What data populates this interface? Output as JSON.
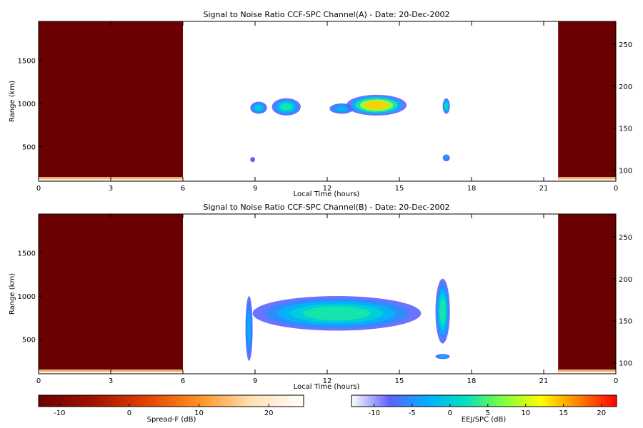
{
  "chart_data": [
    {
      "type": "heatmap",
      "title": "Signal to Noise Ratio CCF-SPC Channel(A) - Date: 20-Dec-2002",
      "xlabel": "Local Time (hours)",
      "ylabel": "Range (km)",
      "xlim": [
        0,
        24
      ],
      "ylim": [
        100,
        1950
      ],
      "x_ticks": [
        "0",
        "3",
        "6",
        "9",
        "12",
        "15",
        "18",
        "21",
        "0"
      ],
      "y_ticks": [
        "500",
        "1000",
        "1500"
      ],
      "y2_ticks": [
        "100",
        "150",
        "200",
        "250"
      ],
      "nighttime_spread_f_regions": [
        [
          0,
          6
        ],
        [
          21.6,
          24
        ]
      ],
      "echo_features": [
        {
          "x0": 8.8,
          "x1": 9.5,
          "range": [
            880,
            1020
          ],
          "peak_db": 0
        },
        {
          "x0": 9.7,
          "x1": 10.9,
          "range": [
            860,
            1060
          ],
          "peak_db": 3
        },
        {
          "x0": 12.1,
          "x1": 13.1,
          "range": [
            880,
            1000
          ],
          "peak_db": -2
        },
        {
          "x0": 12.8,
          "x1": 15.3,
          "range": [
            860,
            1100
          ],
          "peak_db": 14
        },
        {
          "x0": 8.8,
          "x1": 9.0,
          "range": [
            320,
            380
          ],
          "peak_db": -8
        },
        {
          "x0": 16.8,
          "x1": 17.1,
          "range": [
            880,
            1060
          ],
          "peak_db": 2
        },
        {
          "x0": 16.8,
          "x1": 17.1,
          "range": [
            330,
            410
          ],
          "peak_db": -4
        }
      ]
    },
    {
      "type": "heatmap",
      "title": "Signal to Noise Ratio CCF-SPC Channel(B) - Date: 20-Dec-2002",
      "xlabel": "Local Time (hours)",
      "ylabel": "Range (km)",
      "xlim": [
        0,
        24
      ],
      "ylim": [
        100,
        1950
      ],
      "x_ticks": [
        "0",
        "3",
        "6",
        "9",
        "12",
        "15",
        "18",
        "21",
        "0"
      ],
      "y_ticks": [
        "500",
        "1000",
        "1500"
      ],
      "y2_ticks": [
        "100",
        "150",
        "200",
        "250"
      ],
      "nighttime_spread_f_regions": [
        [
          0,
          6
        ],
        [
          21.6,
          24
        ]
      ],
      "echo_features": [
        {
          "x0": 8.6,
          "x1": 8.9,
          "range": [
            250,
            1000
          ],
          "peak_db": -3
        },
        {
          "x0": 8.9,
          "x1": 15.9,
          "range": [
            600,
            1000
          ],
          "peak_db": 3
        },
        {
          "x0": 16.5,
          "x1": 17.1,
          "range": [
            450,
            1200
          ],
          "peak_db": 3
        },
        {
          "x0": 16.5,
          "x1": 17.1,
          "range": [
            270,
            330
          ],
          "peak_db": -2
        }
      ]
    }
  ],
  "colorbars": [
    {
      "label": "Spread-F (dB)",
      "ticks": [
        "-10",
        "0",
        "10",
        "20"
      ],
      "range": [
        -13,
        25
      ]
    },
    {
      "label": "EEJ/SPC (dB)",
      "ticks": [
        "-10",
        "-5",
        "0",
        "5",
        "10",
        "15",
        "20"
      ],
      "range": [
        -13,
        22
      ]
    }
  ],
  "colors": {
    "spread_f_background": "#6b0000",
    "spread_f_scale": [
      "#6b0000",
      "#a01000",
      "#e04000",
      "#ff9020",
      "#ffe0b0",
      "#ffffff"
    ],
    "eej_scale": [
      "#ffffff",
      "#6060ff",
      "#00b0ff",
      "#00e0c0",
      "#80ff40",
      "#ffff00",
      "#ff8000",
      "#ff0000"
    ]
  }
}
